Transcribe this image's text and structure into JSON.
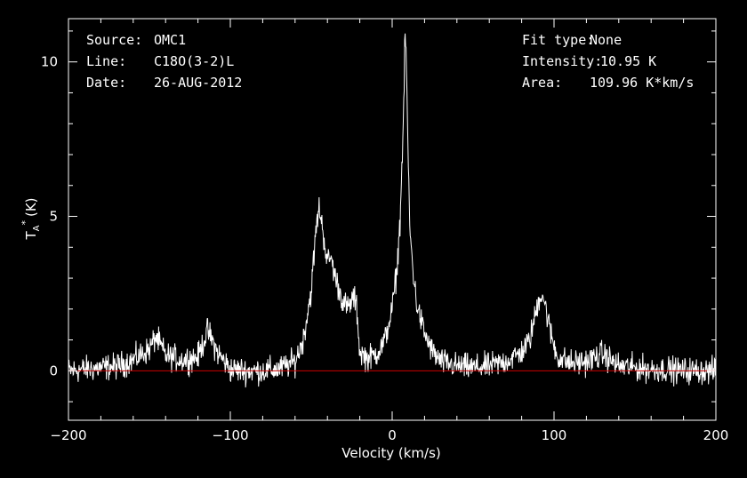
{
  "header_left": [
    {
      "key": "Source:",
      "value": "OMC1"
    },
    {
      "key": "Line:",
      "value": "C18O(3-2)L"
    },
    {
      "key": "Date:",
      "value": "26-AUG-2012"
    }
  ],
  "header_right": [
    {
      "key": "Fit type:",
      "value": "None"
    },
    {
      "key": "Intensity:",
      "value": "10.95 K"
    },
    {
      "key": "Area:",
      "value": "109.96 K*km/s"
    }
  ],
  "colors": {
    "background": "#000000",
    "axes": "#ffffff",
    "spectrum": "#ffffff",
    "baseline": "#cc0000"
  },
  "chart_data": {
    "type": "line",
    "xlabel": "Velocity (km/s)",
    "ylabel_main": "T",
    "ylabel_sub": "A",
    "ylabel_sup": "*",
    "ylabel_unit": "(K)",
    "xlim": [
      -200,
      200
    ],
    "ylim": [
      -1.6,
      11.4
    ],
    "xticks": [
      -200,
      -100,
      0,
      100,
      200
    ],
    "xtick_labels": [
      "−200",
      "−100",
      "0",
      "100",
      "200"
    ],
    "yticks": [
      0,
      5,
      10
    ],
    "ytick_labels": [
      "0",
      "5",
      "10"
    ],
    "grid": false,
    "baseline": 0,
    "series": [
      {
        "x": [
          -200,
          -190,
          -180,
          -170,
          -160,
          -150,
          -146,
          -140,
          -130,
          -120,
          -114,
          -108,
          -100,
          -90,
          -80,
          -70,
          -60,
          -55,
          -50,
          -47,
          -45,
          -43,
          -40,
          -38,
          -35,
          -32,
          -30,
          -27,
          -24,
          -22,
          -20,
          -15,
          -10,
          -5,
          0,
          3,
          5,
          7,
          8,
          9,
          10,
          11,
          13,
          15,
          20,
          25,
          30,
          40,
          50,
          60,
          70,
          80,
          85,
          88,
          91,
          93,
          95,
          98,
          102,
          110,
          120,
          130,
          140,
          150,
          160,
          170,
          180,
          190,
          200
        ],
        "y": [
          0.0,
          0.05,
          0.1,
          0.15,
          0.35,
          0.7,
          1.1,
          0.5,
          0.35,
          0.45,
          1.3,
          0.6,
          0.05,
          0.0,
          0.0,
          0.05,
          0.3,
          1.0,
          2.6,
          4.6,
          5.3,
          4.6,
          3.5,
          3.7,
          3.0,
          2.5,
          2.2,
          2.0,
          2.4,
          2.1,
          0.6,
          0.4,
          0.55,
          0.9,
          2.0,
          3.3,
          5.0,
          8.2,
          10.95,
          9.5,
          6.5,
          4.5,
          3.2,
          2.2,
          1.2,
          0.6,
          0.3,
          0.15,
          0.1,
          0.15,
          0.3,
          0.6,
          1.0,
          1.7,
          2.4,
          2.5,
          2.0,
          1.2,
          0.45,
          0.25,
          0.3,
          0.55,
          0.15,
          0.1,
          0.05,
          0.05,
          0.0,
          0.0,
          0.0
        ]
      }
    ]
  }
}
